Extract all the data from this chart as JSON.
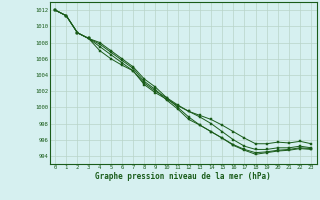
{
  "title": "Graphe pression niveau de la mer (hPa)",
  "background_color": "#d6f0f0",
  "plot_bg_color": "#d6f0f0",
  "grid_color": "#b8d4c8",
  "line_color": "#1a5c1a",
  "marker_color": "#1a5c1a",
  "xlim": [
    -0.5,
    23.5
  ],
  "ylim": [
    993.0,
    1013.0
  ],
  "yticks": [
    994,
    996,
    998,
    1000,
    1002,
    1004,
    1006,
    1008,
    1010,
    1012
  ],
  "xticks": [
    0,
    1,
    2,
    3,
    4,
    5,
    6,
    7,
    8,
    9,
    10,
    11,
    12,
    13,
    14,
    15,
    16,
    17,
    18,
    19,
    20,
    21,
    22,
    23
  ],
  "series": [
    [
      1012,
      1011.3,
      1009.2,
      1008.5,
      1007.0,
      1006.0,
      1005.2,
      1004.5,
      1002.8,
      1001.8,
      1001.0,
      1000.2,
      999.5,
      999.0,
      998.5,
      997.8,
      997.0,
      996.2,
      995.5,
      995.5,
      995.7,
      995.6,
      995.8,
      995.5
    ],
    [
      1012,
      1011.3,
      1009.2,
      1008.5,
      1007.5,
      1006.5,
      1005.5,
      1004.5,
      1003.0,
      1002.0,
      1001.2,
      1000.3,
      999.5,
      998.8,
      998.0,
      997.0,
      996.0,
      995.2,
      994.8,
      994.8,
      995.0,
      995.0,
      995.2,
      995.0
    ],
    [
      1012,
      1011.3,
      1009.2,
      1008.5,
      1007.8,
      1006.8,
      1005.8,
      1004.8,
      1003.2,
      1002.2,
      1000.9,
      999.8,
      998.5,
      997.8,
      997.0,
      996.2,
      995.4,
      994.8,
      994.4,
      994.5,
      994.7,
      994.8,
      995.0,
      994.9
    ],
    [
      1012,
      1011.3,
      1009.2,
      1008.5,
      1008.0,
      1007.0,
      1006.0,
      1005.0,
      1003.5,
      1002.5,
      1001.2,
      1000.0,
      998.8,
      997.8,
      997.0,
      996.2,
      995.3,
      994.7,
      994.2,
      994.4,
      994.6,
      994.7,
      994.9,
      994.8
    ]
  ]
}
